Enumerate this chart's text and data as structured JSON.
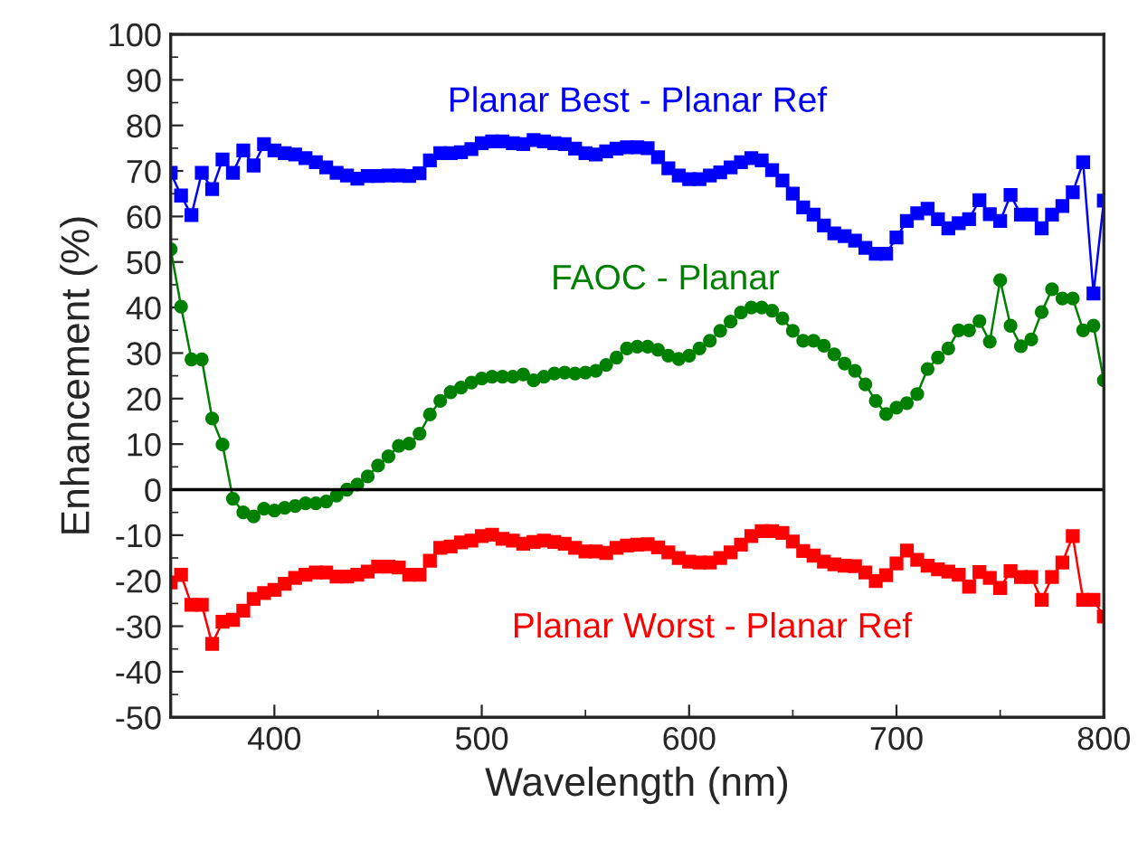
{
  "chart_data": {
    "type": "line",
    "xlabel": "Wavelength (nm)",
    "ylabel": "Enhancement (%)",
    "x": [
      350,
      355,
      360,
      365,
      370,
      375,
      380,
      385,
      390,
      395,
      400,
      405,
      410,
      415,
      420,
      425,
      430,
      435,
      440,
      445,
      450,
      455,
      460,
      465,
      470,
      475,
      480,
      485,
      490,
      495,
      500,
      505,
      510,
      515,
      520,
      525,
      530,
      535,
      540,
      545,
      550,
      555,
      560,
      565,
      570,
      575,
      580,
      585,
      590,
      595,
      600,
      605,
      610,
      615,
      620,
      625,
      630,
      635,
      640,
      645,
      650,
      655,
      660,
      665,
      670,
      675,
      680,
      685,
      690,
      695,
      700,
      705,
      710,
      715,
      720,
      725,
      730,
      735,
      740,
      745,
      750,
      755,
      760,
      765,
      770,
      775,
      780,
      785,
      790,
      795,
      800
    ],
    "series": [
      {
        "name": "Planar Best - Planar Ref",
        "color": "#0000ff",
        "marker": "square",
        "values": [
          69.6,
          64.6,
          60.3,
          69.6,
          66,
          72.5,
          69.6,
          74.5,
          71.2,
          75.9,
          74.5,
          73.9,
          73.6,
          72.8,
          71.9,
          70.8,
          69.6,
          69,
          68.3,
          68.9,
          68.9,
          69,
          69,
          68.9,
          69.5,
          72.3,
          73.9,
          73.9,
          74.1,
          74.8,
          76.1,
          76.5,
          76.5,
          76.1,
          75.9,
          76.8,
          76.5,
          76.1,
          75.9,
          74.9,
          73.9,
          73.6,
          74.3,
          74.9,
          75.2,
          75.2,
          75,
          73,
          70.6,
          69,
          68.2,
          68.2,
          69,
          69.7,
          70.8,
          71.9,
          72.8,
          72.3,
          70.2,
          67.9,
          65,
          62,
          60.4,
          58,
          56.3,
          55.7,
          54.7,
          53.1,
          51.8,
          51.8,
          55.4,
          59,
          60.7,
          61.7,
          59.4,
          57.4,
          58.5,
          59.4,
          63.6,
          60.5,
          59,
          64.7,
          60.4,
          60.4,
          57.4,
          60.4,
          62.3,
          65.3,
          71.9,
          43.1,
          63.5
        ]
      },
      {
        "name": "FAOC - Planar",
        "color": "#008000",
        "marker": "circle",
        "values": [
          52.8,
          40.2,
          28.6,
          28.6,
          15.6,
          9.9,
          -2,
          -5,
          -5.9,
          -4.2,
          -4.6,
          -4,
          -3.6,
          -3,
          -3,
          -2.6,
          -1.3,
          0,
          1.1,
          2.9,
          5.3,
          7.3,
          9.6,
          10.1,
          12.3,
          16.5,
          19.5,
          21.4,
          22.4,
          23.5,
          24.4,
          24.8,
          24.8,
          24.8,
          25.3,
          24,
          24.8,
          25.5,
          25.7,
          25.5,
          25.7,
          26.1,
          27.4,
          29,
          31,
          31.4,
          31.4,
          30.7,
          29.4,
          28.7,
          29.4,
          31,
          32.7,
          34.9,
          36.9,
          38.9,
          40,
          40,
          39.3,
          37.6,
          34.9,
          32.7,
          32.7,
          31.6,
          29.7,
          27.7,
          26.1,
          23.1,
          19.5,
          16.6,
          18,
          19,
          21,
          26.5,
          29,
          31,
          35,
          35,
          37,
          32.5,
          46,
          36,
          31.5,
          33,
          39,
          44,
          42,
          42,
          35,
          36,
          24
        ]
      },
      {
        "name": "Planar Worst - Planar Ref",
        "color": "#ff0000",
        "marker": "square",
        "values": [
          -20.4,
          -18.7,
          -25.3,
          -25.3,
          -33.9,
          -29,
          -28.6,
          -26.6,
          -24,
          -22.7,
          -22,
          -20.7,
          -19.4,
          -18.7,
          -18.2,
          -18.2,
          -19.1,
          -19.1,
          -18.7,
          -18,
          -16.9,
          -16.9,
          -17.1,
          -18.7,
          -18.7,
          -15.6,
          -12.8,
          -12.5,
          -11.6,
          -11.2,
          -10.2,
          -9.9,
          -10.8,
          -11.2,
          -11.9,
          -11.5,
          -11.2,
          -11.5,
          -11.9,
          -12.8,
          -13.6,
          -13.6,
          -13.9,
          -12.8,
          -12.3,
          -12.1,
          -12,
          -12.7,
          -13.8,
          -15,
          -15.8,
          -16,
          -16,
          -15,
          -13.8,
          -12.1,
          -10.2,
          -9.1,
          -9.1,
          -9.5,
          -11.4,
          -13.5,
          -14.5,
          -15.8,
          -16.4,
          -16.7,
          -16.8,
          -18.2,
          -20.1,
          -18.8,
          -16.2,
          -13.4,
          -15.4,
          -16.7,
          -17.5,
          -18,
          -18.7,
          -21.3,
          -18.1,
          -19.4,
          -21.6,
          -17.9,
          -19.2,
          -19.2,
          -24.2,
          -19.2,
          -16,
          -10.2,
          -24.2,
          -24.2,
          -27.9
        ]
      }
    ],
    "xlim": [
      350,
      800
    ],
    "xticks": [
      400,
      500,
      600,
      700,
      800
    ],
    "ylim": [
      -50,
      100
    ],
    "yticks": [
      -50,
      -40,
      -30,
      -20,
      -10,
      0,
      10,
      20,
      30,
      40,
      50,
      60,
      70,
      80,
      90,
      100
    ],
    "ref_lines": [
      {
        "axis": "y",
        "value": 0,
        "color": "#000000"
      }
    ],
    "grid": false,
    "line_style": "solid"
  }
}
